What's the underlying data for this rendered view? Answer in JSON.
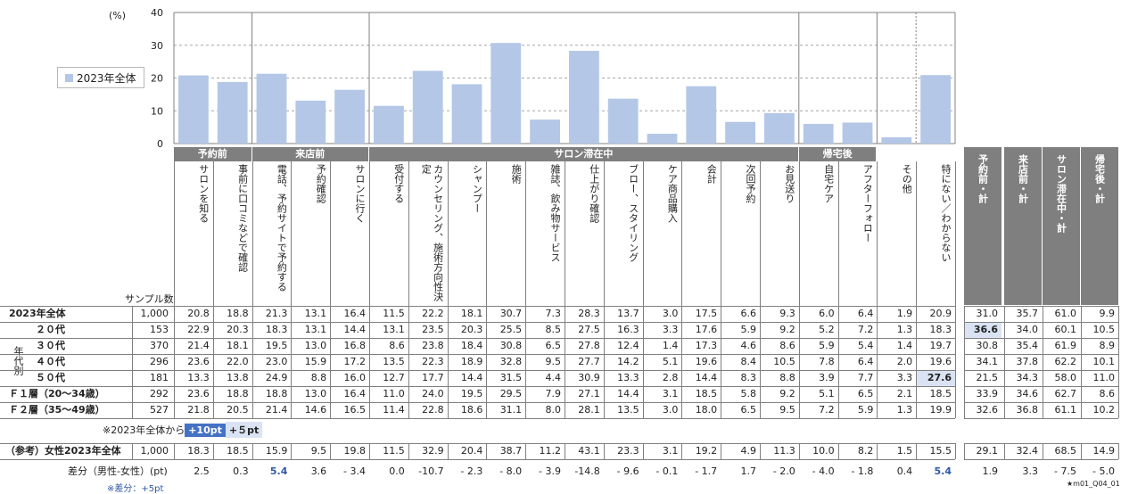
{
  "chart_data": {
    "type": "bar",
    "ylabel": "(%)",
    "ylim": [
      0,
      40
    ],
    "yticks": [
      0,
      10,
      20,
      30,
      40
    ],
    "grid": true,
    "legend": "2023年全体",
    "bar_color": "#b4c7e7",
    "groups": [
      {
        "label": "予約前",
        "start": 0,
        "end": 1
      },
      {
        "label": "来店前",
        "start": 2,
        "end": 4
      },
      {
        "label": "サロン滞在中",
        "start": 5,
        "end": 15
      },
      {
        "label": "帰宅後",
        "start": 16,
        "end": 17
      }
    ],
    "categories": [
      "サロンを知る",
      "事前に口コミなどで確認",
      "電話、予約サイトで予約する",
      "予約確認",
      "サロンに行く",
      "受付する",
      "カウンセリング、施術方向性決定",
      "シャンプー",
      "施術",
      "雑誌、飲み物サービス",
      "仕上がり確認",
      "ブロー、スタイリング",
      "ケア商品購入",
      "会計",
      "次回予約",
      "お見送り",
      "自宅ケア",
      "アフターフォロー",
      "その他",
      "特にない／わからない"
    ],
    "values": [
      20.8,
      18.8,
      21.3,
      13.1,
      16.4,
      11.5,
      22.2,
      18.1,
      30.7,
      7.3,
      28.3,
      13.7,
      3.0,
      17.5,
      6.6,
      9.3,
      6.0,
      6.4,
      1.9,
      20.9
    ]
  },
  "right_headers": [
    "予約前・計",
    "来店前・計",
    "サロン滞在中・計",
    "帰宅後・計"
  ],
  "sample_label": "サンプル数",
  "age_group_label": "年代別",
  "rows": [
    {
      "label": "2023年全体",
      "n": "1,000",
      "v": [
        "20.8",
        "18.8",
        "21.3",
        "13.1",
        "16.4",
        "11.5",
        "22.2",
        "18.1",
        "30.7",
        "7.3",
        "28.3",
        "13.7",
        "3.0",
        "17.5",
        "6.6",
        "9.3",
        "6.0",
        "6.4",
        "1.9",
        "20.9"
      ],
      "r": [
        "31.0",
        "35.7",
        "61.0",
        "9.9"
      ]
    },
    {
      "label": "２０代",
      "n": "153",
      "v": [
        "22.9",
        "20.3",
        "18.3",
        "13.1",
        "14.4",
        "13.1",
        "23.5",
        "20.3",
        "25.5",
        "8.5",
        "27.5",
        "16.3",
        "3.3",
        "17.6",
        "5.9",
        "9.2",
        "5.2",
        "7.2",
        "1.3",
        "18.3"
      ],
      "r": [
        "36.6",
        "34.0",
        "60.1",
        "10.5"
      ]
    },
    {
      "label": "３０代",
      "n": "370",
      "v": [
        "21.4",
        "18.1",
        "19.5",
        "13.0",
        "16.8",
        "8.6",
        "23.8",
        "18.4",
        "30.8",
        "6.5",
        "27.8",
        "12.4",
        "1.4",
        "17.3",
        "4.6",
        "8.6",
        "5.9",
        "5.4",
        "1.4",
        "19.7"
      ],
      "r": [
        "30.8",
        "35.4",
        "61.9",
        "8.9"
      ]
    },
    {
      "label": "４０代",
      "n": "296",
      "v": [
        "23.6",
        "22.0",
        "23.0",
        "15.9",
        "17.2",
        "13.5",
        "22.3",
        "18.9",
        "32.8",
        "9.5",
        "27.7",
        "14.2",
        "5.1",
        "19.6",
        "8.4",
        "10.5",
        "7.8",
        "6.4",
        "2.0",
        "19.6"
      ],
      "r": [
        "34.1",
        "37.8",
        "62.2",
        "10.1"
      ]
    },
    {
      "label": "５０代",
      "n": "181",
      "v": [
        "13.3",
        "13.8",
        "24.9",
        "8.8",
        "16.0",
        "12.7",
        "17.7",
        "14.4",
        "31.5",
        "4.4",
        "30.9",
        "13.3",
        "2.8",
        "14.4",
        "8.3",
        "8.8",
        "3.9",
        "7.7",
        "3.3",
        "27.6"
      ],
      "r": [
        "21.5",
        "34.3",
        "58.0",
        "11.0"
      ]
    },
    {
      "label": "Ｆ１層（20〜34歳）",
      "n": "292",
      "v": [
        "23.6",
        "18.8",
        "18.8",
        "13.0",
        "16.4",
        "11.0",
        "24.0",
        "19.5",
        "29.5",
        "7.9",
        "27.1",
        "14.4",
        "3.1",
        "18.5",
        "5.8",
        "9.2",
        "5.1",
        "6.5",
        "2.1",
        "18.5"
      ],
      "r": [
        "33.9",
        "34.6",
        "62.7",
        "8.6"
      ]
    },
    {
      "label": "Ｆ２層（35〜49歳）",
      "n": "527",
      "v": [
        "21.8",
        "20.5",
        "21.4",
        "14.6",
        "16.5",
        "11.4",
        "22.8",
        "18.6",
        "31.1",
        "8.0",
        "28.1",
        "13.5",
        "3.0",
        "18.0",
        "6.5",
        "9.5",
        "7.2",
        "5.9",
        "1.3",
        "19.9"
      ],
      "r": [
        "32.6",
        "36.8",
        "61.1",
        "10.2"
      ]
    }
  ],
  "note_from": "※2023年全体から",
  "badge1": "+10pt",
  "badge2": "+５pt",
  "ref_row": {
    "label": "（参考）女性2023年全体",
    "n": "1,000",
    "v": [
      "18.3",
      "18.5",
      "15.9",
      "9.5",
      "19.8",
      "11.5",
      "32.9",
      "20.4",
      "38.7",
      "11.2",
      "43.1",
      "23.3",
      "3.1",
      "19.2",
      "4.9",
      "11.3",
      "10.0",
      "8.2",
      "1.5",
      "15.5"
    ],
    "r": [
      "29.1",
      "32.4",
      "68.5",
      "14.9"
    ]
  },
  "diff_row": {
    "label": "差分（男性-女性）(pt)",
    "v": [
      "2.5",
      "0.3",
      "5.4",
      "3.6",
      "- 3.4",
      "0.0",
      "-10.7",
      "- 2.3",
      "- 8.0",
      "- 3.9",
      "-14.8",
      "- 9.6",
      "- 0.1",
      "- 1.7",
      "1.7",
      "- 2.0",
      "- 4.0",
      "- 1.8",
      "0.4",
      "5.4"
    ],
    "r": [
      "1.9",
      "3.3",
      "- 7.5",
      "- 5.0"
    ]
  },
  "diff_note": "※差分：+5pt",
  "footer_code": "★m01_Q04_01"
}
